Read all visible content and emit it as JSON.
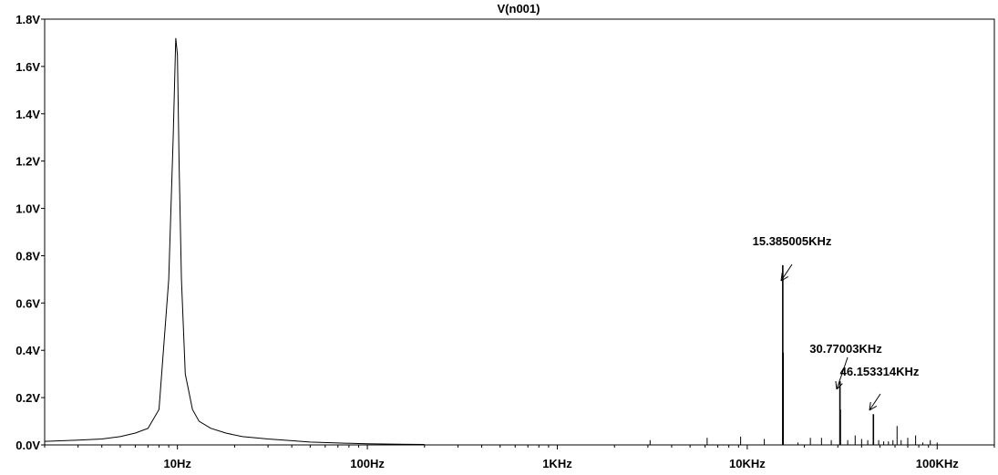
{
  "chart_data": {
    "type": "line",
    "title": "V(n001)",
    "xlabel": "",
    "ylabel": "",
    "x_scale": "log",
    "xlim_hz": [
      2,
      200000
    ],
    "ylim": [
      0,
      1.8
    ],
    "grid": false,
    "line_color": "#000000",
    "x_ticks": [
      {
        "value": 10,
        "label": "10Hz"
      },
      {
        "value": 100,
        "label": "100Hz"
      },
      {
        "value": 1000,
        "label": "1KHz"
      },
      {
        "value": 10000,
        "label": "10KHz"
      },
      {
        "value": 100000,
        "label": "100KHz"
      }
    ],
    "y_ticks": [
      {
        "value": 0.0,
        "label": "0.0V"
      },
      {
        "value": 0.2,
        "label": "0.2V"
      },
      {
        "value": 0.4,
        "label": "0.4V"
      },
      {
        "value": 0.6,
        "label": "0.6V"
      },
      {
        "value": 0.8,
        "label": "0.8V"
      },
      {
        "value": 1.0,
        "label": "1.0V"
      },
      {
        "value": 1.2,
        "label": "1.2V"
      },
      {
        "value": 1.4,
        "label": "1.4V"
      },
      {
        "value": 1.6,
        "label": "1.6V"
      },
      {
        "value": 1.8,
        "label": "1.8V"
      }
    ],
    "series": [
      {
        "x_hz": [
          2,
          3,
          4,
          5,
          6,
          7,
          8,
          9,
          9.5,
          9.8,
          10,
          10.2,
          10.5,
          11,
          12,
          13,
          15,
          18,
          22,
          30,
          40,
          50,
          70,
          100,
          150,
          200
        ],
        "values": [
          0.015,
          0.02,
          0.025,
          0.035,
          0.05,
          0.07,
          0.15,
          0.7,
          1.3,
          1.72,
          1.65,
          1.2,
          0.7,
          0.3,
          0.15,
          0.1,
          0.07,
          0.05,
          0.035,
          0.025,
          0.018,
          0.012,
          0.008,
          0.005,
          0.003,
          0.002
        ]
      }
    ],
    "spikes": [
      {
        "x_hz": 3080,
        "value": 0.02
      },
      {
        "x_hz": 6150,
        "value": 0.03
      },
      {
        "x_hz": 9230,
        "value": 0.035
      },
      {
        "x_hz": 12300,
        "value": 0.025
      },
      {
        "x_hz": 15385,
        "value": 0.76
      },
      {
        "x_hz": 15450,
        "value": 0.39
      },
      {
        "x_hz": 18500,
        "value": 0.01
      },
      {
        "x_hz": 21500,
        "value": 0.03
      },
      {
        "x_hz": 24600,
        "value": 0.03
      },
      {
        "x_hz": 27700,
        "value": 0.02
      },
      {
        "x_hz": 30770,
        "value": 0.27
      },
      {
        "x_hz": 30900,
        "value": 0.15
      },
      {
        "x_hz": 33800,
        "value": 0.02
      },
      {
        "x_hz": 37000,
        "value": 0.04
      },
      {
        "x_hz": 40000,
        "value": 0.025
      },
      {
        "x_hz": 43100,
        "value": 0.02
      },
      {
        "x_hz": 46153,
        "value": 0.13
      },
      {
        "x_hz": 49200,
        "value": 0.02
      },
      {
        "x_hz": 52300,
        "value": 0.015
      },
      {
        "x_hz": 55400,
        "value": 0.015
      },
      {
        "x_hz": 58500,
        "value": 0.02
      },
      {
        "x_hz": 61500,
        "value": 0.08
      },
      {
        "x_hz": 64600,
        "value": 0.02
      },
      {
        "x_hz": 70000,
        "value": 0.03
      },
      {
        "x_hz": 77000,
        "value": 0.04
      },
      {
        "x_hz": 84000,
        "value": 0.01
      },
      {
        "x_hz": 92000,
        "value": 0.02
      },
      {
        "x_hz": 100000,
        "value": 0.01
      }
    ],
    "annotations": [
      {
        "label": "15.385005KHz",
        "x_hz": 15385,
        "value": 0.76
      },
      {
        "label": "30.77003KHz",
        "x_hz": 30770,
        "value": 0.25
      },
      {
        "label": "46.153314KHz",
        "x_hz": 46153,
        "value": 0.14
      }
    ]
  }
}
